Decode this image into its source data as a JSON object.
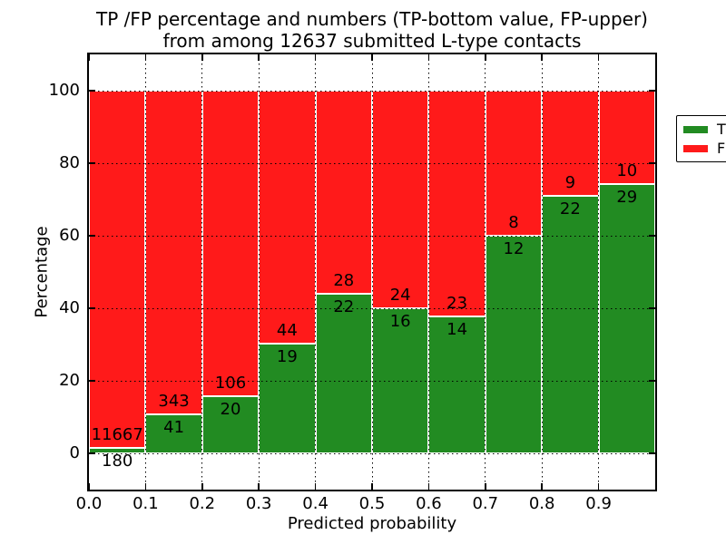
{
  "figure": {
    "title_line1": "TP /FP percentage and numbers (TP-bottom value, FP-upper)",
    "title_line2": "from among 12637 submitted L-type contacts"
  },
  "axes": {
    "xlabel": "Predicted probability",
    "ylabel": "Percentage",
    "x_tick_labels": [
      "0.0",
      "0.1",
      "0.2",
      "0.3",
      "0.4",
      "0.5",
      "0.6",
      "0.7",
      "0.8",
      "0.9"
    ],
    "x_tick_values": [
      0.0,
      0.1,
      0.2,
      0.3,
      0.4,
      0.5,
      0.6,
      0.7,
      0.8,
      0.9
    ],
    "y_tick_labels": [
      "0",
      "20",
      "40",
      "60",
      "80",
      "100"
    ],
    "y_tick_values": [
      0,
      20,
      40,
      60,
      80,
      100
    ],
    "xlim": [
      0.0,
      1.0
    ],
    "ylim": [
      -10,
      110
    ],
    "grid": true,
    "grid_style": "dotted-black"
  },
  "legend": {
    "position": "upper-right",
    "items": [
      {
        "label": "TP",
        "color": "#228B22"
      },
      {
        "label": "FP",
        "color": "#FF1A1A"
      }
    ]
  },
  "chart_data": {
    "type": "bar",
    "stacked": true,
    "total_contacts": 12637,
    "bin_width": 0.1,
    "bins_start": [
      0.0,
      0.1,
      0.2,
      0.3,
      0.4,
      0.5,
      0.6,
      0.7,
      0.8,
      0.9
    ],
    "series": [
      {
        "name": "TP",
        "color": "#228B22",
        "counts": [
          180,
          41,
          20,
          19,
          22,
          16,
          14,
          12,
          22,
          29
        ],
        "percent": [
          1.52,
          10.68,
          15.87,
          30.16,
          44.0,
          40.0,
          37.84,
          60.0,
          70.97,
          74.36
        ]
      },
      {
        "name": "FP",
        "color": "#FF1A1A",
        "counts": [
          11667,
          343,
          106,
          44,
          28,
          24,
          23,
          8,
          9,
          10
        ],
        "percent": [
          98.48,
          89.32,
          84.13,
          69.84,
          56.0,
          60.0,
          62.16,
          40.0,
          29.03,
          25.64
        ]
      }
    ]
  }
}
